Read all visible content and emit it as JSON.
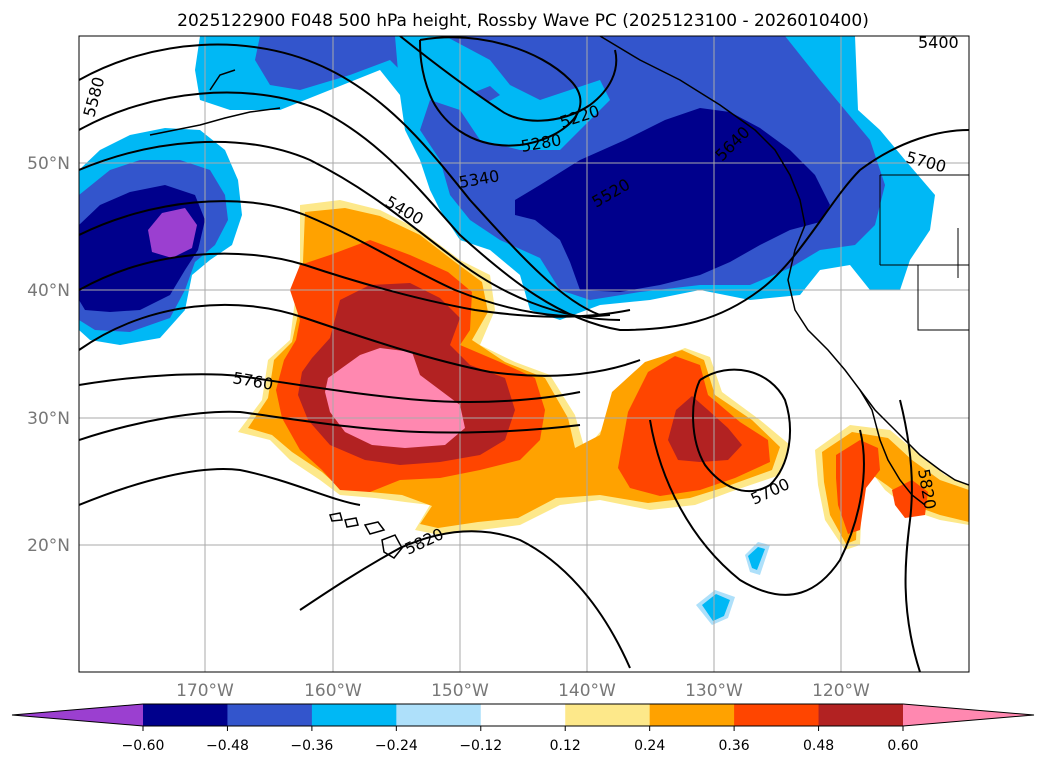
{
  "title": "2025122900 F048 500 hPa height, Rossby Wave PC (2025123100 - 2026010400)",
  "lat_labels": [
    "50°N",
    "40°N",
    "30°N",
    "20°N"
  ],
  "lon_labels": [
    "170°W",
    "160°W",
    "150°W",
    "140°W",
    "130°W",
    "120°W"
  ],
  "colorbar": {
    "ticks": [
      "−0.60",
      "−0.48",
      "−0.36",
      "−0.24",
      "−0.12",
      "0.12",
      "0.24",
      "0.36",
      "0.48",
      "0.60"
    ],
    "colors": [
      "#9b3fd0",
      "#00008c",
      "#3355cc",
      "#00b8f5",
      "#aee0fa",
      "#ffffff",
      "#fde88a",
      "#ffa200",
      "#ff4500",
      "#b22222",
      "#ff88b0"
    ]
  },
  "contour_labels": [
    "5400",
    "5580",
    "5220",
    "5280",
    "5340",
    "5400",
    "5520",
    "5640",
    "5700",
    "5760",
    "5700",
    "5820",
    "5820"
  ],
  "colors": {
    "purple": "#9b3fd0",
    "navy": "#00008c",
    "blue": "#3355cc",
    "sky": "#00b8f5",
    "lightblue": "#aee0fa",
    "yellow": "#fde88a",
    "orange": "#ffa200",
    "redorange": "#ff4500",
    "darkred": "#b22222",
    "pink": "#ff88b0"
  }
}
